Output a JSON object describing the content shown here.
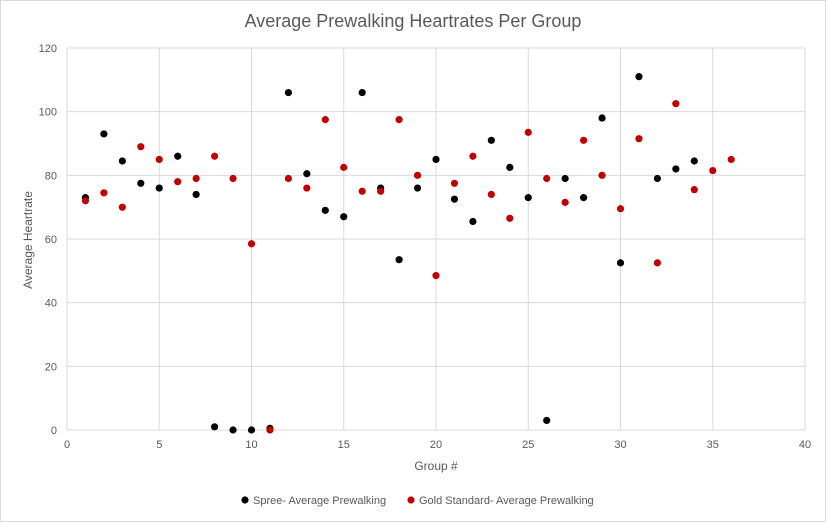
{
  "chart_data": {
    "type": "scatter",
    "title": "Average Prewalking Heartrates Per Group",
    "xlabel": "Group #",
    "ylabel": "Average Heartrate",
    "xlim": [
      0,
      40
    ],
    "ylim": [
      0,
      120
    ],
    "xticks": [
      0,
      5,
      10,
      15,
      20,
      25,
      30,
      35,
      40
    ],
    "yticks": [
      0,
      20,
      40,
      60,
      80,
      100,
      120
    ],
    "grid": true,
    "legend_position": "bottom",
    "series": [
      {
        "name": "Spree- Average Prewalking",
        "color": "#000000",
        "points": [
          [
            1,
            73
          ],
          [
            2,
            93
          ],
          [
            3,
            84.5
          ],
          [
            4,
            77.5
          ],
          [
            5,
            76
          ],
          [
            6,
            86
          ],
          [
            7,
            74
          ],
          [
            8,
            1
          ],
          [
            9,
            0
          ],
          [
            10,
            0
          ],
          [
            11,
            0.5
          ],
          [
            12,
            106
          ],
          [
            13,
            80.5
          ],
          [
            14,
            69
          ],
          [
            15,
            67
          ],
          [
            16,
            106
          ],
          [
            17,
            76
          ],
          [
            18,
            53.5
          ],
          [
            19,
            76
          ],
          [
            20,
            85
          ],
          [
            21,
            72.5
          ],
          [
            22,
            65.5
          ],
          [
            23,
            91
          ],
          [
            24,
            82.5
          ],
          [
            25,
            73
          ],
          [
            26,
            3
          ],
          [
            27,
            79
          ],
          [
            28,
            73
          ],
          [
            29,
            98
          ],
          [
            30,
            52.5
          ],
          [
            31,
            111
          ],
          [
            32,
            79
          ],
          [
            33,
            82
          ],
          [
            34,
            84.5
          ]
        ]
      },
      {
        "name": "Gold Standard- Average Prewalking",
        "color": "#c00000",
        "points": [
          [
            1,
            72
          ],
          [
            2,
            74.5
          ],
          [
            3,
            70
          ],
          [
            4,
            89
          ],
          [
            5,
            85
          ],
          [
            6,
            78
          ],
          [
            7,
            79
          ],
          [
            8,
            86
          ],
          [
            9,
            79
          ],
          [
            10,
            58.5
          ],
          [
            11,
            0
          ],
          [
            12,
            79
          ],
          [
            13,
            76
          ],
          [
            14,
            97.5
          ],
          [
            15,
            82.5
          ],
          [
            16,
            75
          ],
          [
            17,
            75
          ],
          [
            18,
            97.5
          ],
          [
            19,
            80
          ],
          [
            20,
            48.5
          ],
          [
            21,
            77.5
          ],
          [
            22,
            86
          ],
          [
            23,
            74
          ],
          [
            24,
            66.5
          ],
          [
            25,
            93.5
          ],
          [
            26,
            79
          ],
          [
            27,
            71.5
          ],
          [
            28,
            91
          ],
          [
            29,
            80
          ],
          [
            30,
            69.5
          ],
          [
            31,
            91.5
          ],
          [
            32,
            52.5
          ],
          [
            33,
            102.5
          ],
          [
            34,
            75.5
          ],
          [
            35,
            81.5
          ],
          [
            36,
            85
          ]
        ]
      }
    ]
  }
}
